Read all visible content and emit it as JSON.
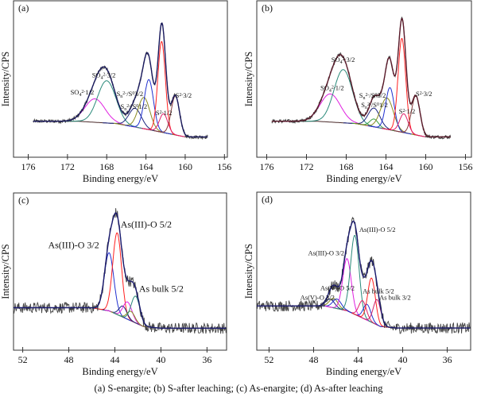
{
  "caption": "(a) S-enargite; (b) S-after leaching; (c) As-enargite; (d) As-after leaching",
  "chart_data": [
    {
      "type": "line",
      "panel_label": "(a)",
      "xlabel": "Binding energy/eV",
      "ylabel": "Intensity/CPS",
      "xlim": [
        177.5,
        155.7
      ],
      "ylim": [
        0,
        1
      ],
      "x_reversed": true,
      "xticks": [
        176,
        172,
        168,
        164,
        160,
        156
      ],
      "grid": false,
      "spectrum_range": [
        175.5,
        157.7
      ],
      "noise": 0.012,
      "envelope_color": "#1a1a5e",
      "background": [
        [
          177,
          0.23
        ],
        [
          171,
          0.23
        ],
        [
          167,
          0.215
        ],
        [
          164,
          0.18
        ],
        [
          162,
          0.155
        ],
        [
          160,
          0.13
        ],
        [
          156,
          0.13
        ]
      ],
      "components": [
        {
          "center": 169.2,
          "fwhm": 2.4,
          "height": 0.15,
          "color": "#e020e0"
        },
        {
          "center": 168.0,
          "fwhm": 2.2,
          "height": 0.27,
          "color": "#2a8a7a"
        },
        {
          "center": 165.1,
          "fwhm": 1.5,
          "height": 0.12,
          "color": "#1a237e"
        },
        {
          "center": 164.2,
          "fwhm": 1.4,
          "height": 0.2,
          "color": "#8a8a20"
        },
        {
          "center": 163.7,
          "fwhm": 1.1,
          "height": 0.32,
          "color": "#2030d0"
        },
        {
          "center": 162.4,
          "fwhm": 0.9,
          "height": 0.58,
          "color": "#ff2020"
        },
        {
          "center": 162.2,
          "fwhm": 1.0,
          "height": 0.12,
          "color": "#e0206a"
        },
        {
          "center": 161.0,
          "fwhm": 1.0,
          "height": 0.25,
          "color": "#8b3a3a"
        }
      ],
      "annotations": [
        {
          "x": 171.7,
          "y": 0.4,
          "parts": [
            [
              "SO",
              ""
            ],
            [
              "4",
              "sub"
            ],
            [
              "2-",
              "sup"
            ],
            [
              "1/2",
              ""
            ]
          ]
        },
        {
          "x": 169.5,
          "y": 0.51,
          "parts": [
            [
              "SO",
              ""
            ],
            [
              "4",
              "sub"
            ],
            [
              "2-",
              "sup"
            ],
            [
              "3/2",
              ""
            ]
          ]
        },
        {
          "x": 167.0,
          "y": 0.39,
          "parts": [
            [
              "S",
              ""
            ],
            [
              "n",
              "sub"
            ],
            [
              "2-",
              "sup"
            ],
            [
              "/S",
              ""
            ],
            [
              "0",
              "sup"
            ],
            [
              "3/2",
              ""
            ]
          ]
        },
        {
          "x": 166.6,
          "y": 0.31,
          "parts": [
            [
              "S",
              ""
            ],
            [
              "n",
              "sub"
            ],
            [
              "2-",
              "sup"
            ],
            [
              "/S",
              ""
            ],
            [
              "0",
              "sup"
            ],
            [
              "1/2",
              ""
            ]
          ]
        },
        {
          "x": 163.0,
          "y": 0.27,
          "parts": [
            [
              "S",
              ""
            ],
            [
              "2-",
              "sup"
            ],
            [
              "1/2",
              ""
            ]
          ]
        },
        {
          "x": 161.0,
          "y": 0.38,
          "parts": [
            [
              "S",
              ""
            ],
            [
              "2-",
              "sup"
            ],
            [
              "3/2",
              ""
            ]
          ]
        }
      ]
    },
    {
      "type": "line",
      "panel_label": "(b)",
      "xlabel": "Binding energy/eV",
      "ylabel": "Intensity/CPS",
      "xlim": [
        177,
        155.4
      ],
      "ylim": [
        0,
        1
      ],
      "x_reversed": true,
      "xticks": [
        176,
        172,
        168,
        164,
        160,
        156
      ],
      "grid": false,
      "spectrum_range": [
        175.5,
        157.5
      ],
      "noise": 0.012,
      "envelope_color": "#5a1a2a",
      "background": [
        [
          177,
          0.23
        ],
        [
          171,
          0.23
        ],
        [
          167,
          0.215
        ],
        [
          164,
          0.18
        ],
        [
          162,
          0.155
        ],
        [
          160,
          0.13
        ],
        [
          156,
          0.13
        ]
      ],
      "components": [
        {
          "center": 169.6,
          "fwhm": 2.4,
          "height": 0.18,
          "color": "#e020e0"
        },
        {
          "center": 168.3,
          "fwhm": 2.2,
          "height": 0.34,
          "color": "#2a8a7a"
        },
        {
          "center": 165.2,
          "fwhm": 1.4,
          "height": 0.12,
          "color": "#1a237e"
        },
        {
          "center": 165.2,
          "fwhm": 1.0,
          "height": 0.05,
          "color": "#3aa040"
        },
        {
          "center": 163.9,
          "fwhm": 1.5,
          "height": 0.2,
          "color": "#8a8a20"
        },
        {
          "center": 163.6,
          "fwhm": 1.0,
          "height": 0.27,
          "color": "#2030d0"
        },
        {
          "center": 162.4,
          "fwhm": 0.9,
          "height": 0.6,
          "color": "#ff2020"
        },
        {
          "center": 162.2,
          "fwhm": 1.0,
          "height": 0.12,
          "color": "#e0206a"
        },
        {
          "center": 161.0,
          "fwhm": 1.0,
          "height": 0.25,
          "color": "#8b3a3a"
        }
      ],
      "annotations": [
        {
          "x": 170.6,
          "y": 0.43,
          "parts": [
            [
              "SO",
              ""
            ],
            [
              "4",
              "sub"
            ],
            [
              "2-",
              "sup"
            ],
            [
              "1/2",
              ""
            ]
          ]
        },
        {
          "x": 169.5,
          "y": 0.61,
          "parts": [
            [
              "SO",
              ""
            ],
            [
              "4",
              "sub"
            ],
            [
              "2-",
              "sup"
            ],
            [
              "3/2",
              ""
            ]
          ]
        },
        {
          "x": 166.7,
          "y": 0.38,
          "parts": [
            [
              "S",
              ""
            ],
            [
              "n",
              "sub"
            ],
            [
              "2-",
              "sup"
            ],
            [
              "/S",
              ""
            ],
            [
              "0",
              "sup"
            ],
            [
              "3/2",
              ""
            ]
          ]
        },
        {
          "x": 166.5,
          "y": 0.32,
          "parts": [
            [
              "S",
              ""
            ],
            [
              "n",
              "sub"
            ],
            [
              "2-",
              "sup"
            ],
            [
              "/S",
              ""
            ],
            [
              "0",
              "sup"
            ],
            [
              "1/2",
              ""
            ]
          ]
        },
        {
          "x": 162.7,
          "y": 0.28,
          "parts": [
            [
              "S",
              ""
            ],
            [
              "2-",
              "sup"
            ],
            [
              "1/2",
              ""
            ]
          ]
        },
        {
          "x": 161.0,
          "y": 0.39,
          "parts": [
            [
              "S",
              ""
            ],
            [
              "2-",
              "sup"
            ],
            [
              "3/2",
              ""
            ]
          ]
        }
      ]
    },
    {
      "type": "line",
      "panel_label": "(c)",
      "xlabel": "Binding energy/eV",
      "ylabel": "Intensity/CPS",
      "xlim": [
        52.8,
        34.3
      ],
      "ylim": [
        0,
        1
      ],
      "x_reversed": true,
      "xticks": [
        52,
        48,
        44,
        40,
        36
      ],
      "grid": false,
      "spectrum_range": [
        52.8,
        34.3
      ],
      "noise": 0.035,
      "envelope_color": "#1a1a6e",
      "background": [
        [
          53,
          0.27
        ],
        [
          46,
          0.27
        ],
        [
          44.5,
          0.25
        ],
        [
          43,
          0.2
        ],
        [
          41.5,
          0.15
        ],
        [
          40,
          0.14
        ],
        [
          34,
          0.14
        ]
      ],
      "components": [
        {
          "center": 44.5,
          "fwhm": 0.95,
          "height": 0.37,
          "color": "#2030d0"
        },
        {
          "center": 43.8,
          "fwhm": 0.9,
          "height": 0.52,
          "color": "#ff2020"
        },
        {
          "center": 43.3,
          "fwhm": 0.8,
          "height": 0.07,
          "color": "#1a237e"
        },
        {
          "center": 42.9,
          "fwhm": 0.9,
          "height": 0.11,
          "color": "#e020e0"
        },
        {
          "center": 42.6,
          "fwhm": 0.8,
          "height": 0.06,
          "color": "#8a8a20"
        },
        {
          "center": 42.2,
          "fwhm": 0.9,
          "height": 0.17,
          "color": "#2a8a7a"
        }
      ],
      "annotations": [
        {
          "x": 43.5,
          "y": 0.78,
          "parts": [
            [
              "As(III)-O 5/2",
              ""
            ]
          ]
        },
        {
          "x": 49.8,
          "y": 0.65,
          "parts": [
            [
              "As(III)-O 3/2",
              ""
            ]
          ]
        },
        {
          "x": 41.9,
          "y": 0.37,
          "parts": [
            [
              "As bulk 5/2",
              ""
            ]
          ]
        }
      ]
    },
    {
      "type": "line",
      "panel_label": "(d)",
      "xlabel": "Binding energy/eV",
      "ylabel": "Intensity/CPS",
      "xlim": [
        53.1,
        33.9
      ],
      "ylim": [
        0,
        1
      ],
      "x_reversed": true,
      "xticks": [
        52,
        48,
        44,
        40,
        36
      ],
      "grid": false,
      "spectrum_range": [
        53.1,
        33.9
      ],
      "noise": 0.035,
      "envelope_color": "#1a1a6e",
      "background": [
        [
          54,
          0.28
        ],
        [
          47,
          0.28
        ],
        [
          45,
          0.25
        ],
        [
          43.5,
          0.2
        ],
        [
          42,
          0.15
        ],
        [
          40.5,
          0.14
        ],
        [
          33,
          0.14
        ]
      ],
      "components": [
        {
          "center": 46.5,
          "fwhm": 0.9,
          "height": 0.05,
          "color": "#1a237e"
        },
        {
          "center": 46.2,
          "fwhm": 0.9,
          "height": 0.06,
          "color": "#8a8a20"
        },
        {
          "center": 45.9,
          "fwhm": 0.9,
          "height": 0.06,
          "color": "#2030d0"
        },
        {
          "center": 45.0,
          "fwhm": 0.9,
          "height": 0.33,
          "color": "#e020e0"
        },
        {
          "center": 44.3,
          "fwhm": 0.9,
          "height": 0.5,
          "color": "#2a8a7a"
        },
        {
          "center": 43.6,
          "fwhm": 0.8,
          "height": 0.11,
          "color": "#e0206a"
        },
        {
          "center": 43.2,
          "fwhm": 0.8,
          "height": 0.1,
          "color": "#2030d0"
        },
        {
          "center": 42.8,
          "fwhm": 0.8,
          "height": 0.28,
          "color": "#ff2020"
        },
        {
          "center": 42.3,
          "fwhm": 0.8,
          "height": 0.16,
          "color": "#d0206a"
        }
      ],
      "annotations": [
        {
          "x": 43.9,
          "y": 0.75,
          "parts": [
            [
              "As(III)-O 5/2",
              ""
            ]
          ]
        },
        {
          "x": 48.5,
          "y": 0.6,
          "parts": [
            [
              "As(III)-O 3/2",
              ""
            ]
          ]
        },
        {
          "x": 47.4,
          "y": 0.38,
          "parts": [
            [
              "As(V)-O 5/2",
              ""
            ]
          ]
        },
        {
          "x": 49.2,
          "y": 0.32,
          "parts": [
            [
              "As(V)-O 3/2",
              ""
            ]
          ]
        },
        {
          "x": 43.6,
          "y": 0.36,
          "parts": [
            [
              "As bulk 5/2",
              ""
            ]
          ]
        },
        {
          "x": 42.1,
          "y": 0.32,
          "parts": [
            [
              "As bulk 3/2",
              ""
            ]
          ]
        }
      ]
    }
  ]
}
